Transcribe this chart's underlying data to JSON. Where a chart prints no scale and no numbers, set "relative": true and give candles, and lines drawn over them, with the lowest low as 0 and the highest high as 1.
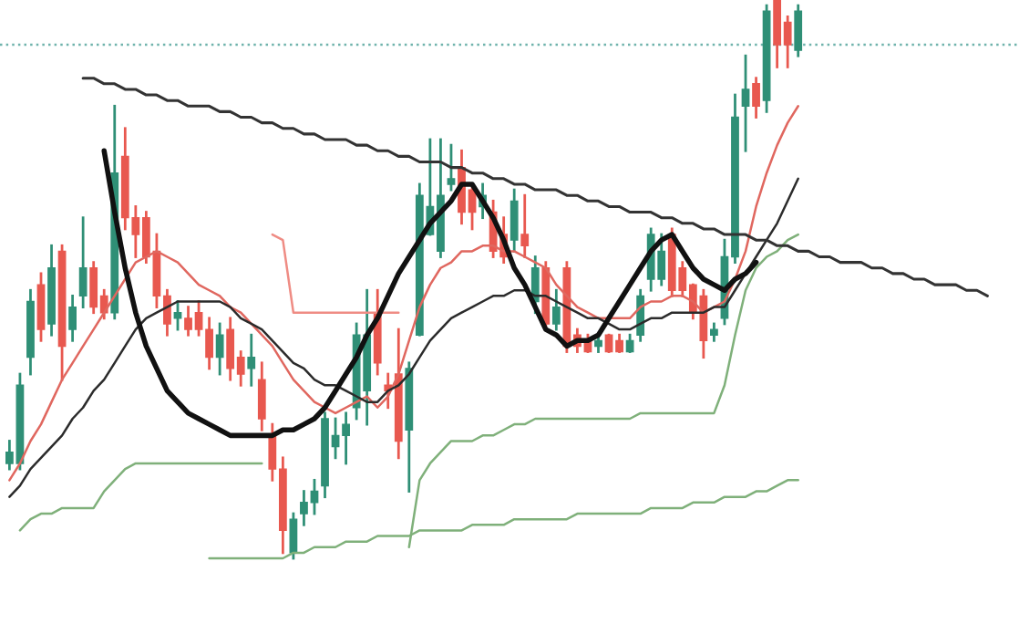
{
  "chart_data": {
    "type": "candlestick",
    "relative": true,
    "categories": [
      null,
      null,
      null,
      null,
      null,
      null,
      null,
      null,
      null,
      null,
      null,
      null,
      null,
      null,
      null,
      null,
      null,
      null,
      null,
      null,
      null,
      null,
      null,
      null,
      null,
      null,
      null,
      null,
      null,
      null,
      null,
      null,
      null,
      null,
      null,
      null,
      null,
      null,
      null,
      null,
      null,
      null,
      null,
      null,
      null,
      null,
      null,
      null,
      null,
      null,
      null,
      null,
      null,
      null,
      null,
      null,
      null,
      null,
      null,
      null,
      null,
      null,
      null,
      null,
      null,
      null,
      null,
      null,
      null,
      null,
      null,
      null,
      null,
      null,
      null,
      null,
      null,
      null,
      null,
      null,
      null,
      null,
      null,
      null,
      null,
      null,
      null,
      null,
      null,
      null,
      null,
      null,
      null,
      null
    ],
    "colors": [
      "#2f8f76",
      "#2f8f76",
      "#2f8f76",
      "#e8584f",
      "#2f8f76",
      "#e8584f",
      "#2f8f76",
      "#2f8f76",
      "#e8584f",
      "#e8584f",
      "#2f8f76",
      "#e8584f",
      "#e8584f",
      "#e8584f",
      "#e8584f",
      "#e8584f",
      "#2f8f76",
      "#e8584f",
      "#e8584f",
      "#e8584f",
      "#2f8f76",
      "#e8584f",
      "#e8584f",
      "#2f8f76",
      "#e8584f",
      "#e8584f",
      "#e8584f",
      "#2f8f76",
      "#2f8f76",
      "#2f8f76",
      "#2f8f76",
      "#2f8f76",
      "#2f8f76",
      "#2f8f76",
      "#2f8f76",
      "#e8584f",
      "#e8584f",
      "#e8584f",
      "#2f8f76",
      "#2f8f76",
      "#2f8f76",
      "#2f8f76",
      "#2f8f76",
      "#e8584f",
      "#e8584f",
      "#2f8f76",
      "#e8584f",
      "#e8584f",
      "#2f8f76",
      "#e8584f",
      "#2f8f76",
      "#e8584f",
      "#2f8f76",
      "#e8584f",
      "#e8584f",
      "#e8584f",
      "#2f8f76",
      "#e8584f",
      "#e8584f",
      "#2f8f76",
      "#2f8f76",
      "#2f8f76",
      "#2f8f76",
      "#e8584f",
      "#e8584f",
      "#e8584f",
      "#e8584f",
      "#2f8f76",
      "#2f8f76",
      "#2f8f76",
      "#2f8f76",
      "#e8584f",
      "#2f8f76",
      "#e8584f",
      "#e8584f",
      "#2f8f76",
      null,
      null,
      null,
      null,
      null,
      null,
      null,
      null,
      null,
      null,
      null,
      null,
      null,
      null,
      null,
      null,
      null,
      null
    ],
    "ohlc": [
      [
        0.17,
        0.21,
        0.16,
        0.19
      ],
      [
        0.17,
        0.33,
        0.16,
        0.31
      ],
      [
        0.36,
        0.48,
        0.33,
        0.46
      ],
      [
        0.49,
        0.51,
        0.39,
        0.41
      ],
      [
        0.42,
        0.56,
        0.4,
        0.52
      ],
      [
        0.55,
        0.56,
        0.32,
        0.38
      ],
      [
        0.41,
        0.47,
        0.39,
        0.45
      ],
      [
        0.47,
        0.61,
        0.45,
        0.52
      ],
      [
        0.52,
        0.53,
        0.44,
        0.45
      ],
      [
        0.47,
        0.48,
        0.43,
        0.44
      ],
      [
        0.44,
        0.81,
        0.43,
        0.69
      ],
      [
        0.72,
        0.77,
        0.59,
        0.61
      ],
      [
        0.61,
        0.63,
        0.54,
        0.58
      ],
      [
        0.61,
        0.62,
        0.53,
        0.54
      ],
      [
        0.55,
        0.58,
        0.45,
        0.47
      ],
      [
        0.47,
        0.48,
        0.4,
        0.42
      ],
      [
        0.43,
        0.46,
        0.41,
        0.44
      ],
      [
        0.43,
        0.45,
        0.4,
        0.41
      ],
      [
        0.44,
        0.46,
        0.4,
        0.41
      ],
      [
        0.41,
        0.43,
        0.34,
        0.36
      ],
      [
        0.36,
        0.42,
        0.33,
        0.4
      ],
      [
        0.41,
        0.43,
        0.32,
        0.34
      ],
      [
        0.36,
        0.37,
        0.31,
        0.33
      ],
      [
        0.34,
        0.4,
        0.31,
        0.36
      ],
      [
        0.32,
        0.35,
        0.23,
        0.25
      ],
      [
        0.22,
        0.24,
        0.14,
        0.16
      ],
      [
        0.16,
        0.18,
        0.01,
        0.05
      ],
      [
        0.01,
        0.08,
        0.0,
        0.07
      ],
      [
        0.08,
        0.12,
        0.06,
        0.1
      ],
      [
        0.1,
        0.14,
        0.08,
        0.12
      ],
      [
        0.13,
        0.26,
        0.11,
        0.25
      ],
      [
        0.2,
        0.25,
        0.18,
        0.22
      ],
      [
        0.22,
        0.26,
        0.17,
        0.24
      ],
      [
        0.27,
        0.42,
        0.25,
        0.4
      ],
      [
        0.3,
        0.48,
        0.24,
        0.4
      ],
      [
        0.44,
        0.48,
        0.33,
        0.35
      ],
      [
        0.31,
        0.33,
        0.27,
        0.3
      ],
      [
        0.33,
        0.41,
        0.18,
        0.21
      ],
      [
        0.23,
        0.35,
        0.12,
        0.34
      ],
      [
        0.4,
        0.67,
        0.4,
        0.65
      ],
      [
        0.58,
        0.75,
        0.58,
        0.63
      ],
      [
        0.55,
        0.75,
        0.54,
        0.65
      ],
      [
        0.67,
        0.74,
        0.66,
        0.68
      ],
      [
        0.7,
        0.73,
        0.6,
        0.62
      ],
      [
        0.66,
        0.67,
        0.59,
        0.62
      ],
      [
        0.63,
        0.67,
        0.61,
        0.65
      ],
      [
        0.62,
        0.64,
        0.54,
        0.55
      ],
      [
        0.58,
        0.61,
        0.53,
        0.54
      ],
      [
        0.57,
        0.66,
        0.55,
        0.64
      ],
      [
        0.58,
        0.65,
        0.54,
        0.56
      ],
      [
        0.46,
        0.54,
        0.44,
        0.52
      ],
      [
        0.52,
        0.53,
        0.41,
        0.42
      ],
      [
        0.42,
        0.48,
        0.41,
        0.45
      ],
      [
        0.52,
        0.53,
        0.37,
        0.38
      ],
      [
        0.4,
        0.41,
        0.37,
        0.38
      ],
      [
        0.39,
        0.4,
        0.37,
        0.37
      ],
      [
        0.38,
        0.4,
        0.37,
        0.39
      ],
      [
        0.4,
        0.4,
        0.37,
        0.37
      ],
      [
        0.39,
        0.4,
        0.37,
        0.37
      ],
      [
        0.37,
        0.4,
        0.37,
        0.39
      ],
      [
        0.4,
        0.48,
        0.39,
        0.47
      ],
      [
        0.5,
        0.59,
        0.48,
        0.58
      ],
      [
        0.5,
        0.58,
        0.49,
        0.55
      ],
      [
        0.58,
        0.59,
        0.47,
        0.48
      ],
      [
        0.52,
        0.53,
        0.47,
        0.48
      ],
      [
        0.49,
        0.49,
        0.43,
        0.44
      ],
      [
        0.47,
        0.48,
        0.36,
        0.39
      ],
      [
        0.4,
        0.42,
        0.39,
        0.41
      ],
      [
        0.43,
        0.57,
        0.42,
        0.54
      ],
      [
        0.54,
        0.83,
        0.53,
        0.79
      ],
      [
        0.81,
        0.9,
        0.73,
        0.84
      ],
      [
        0.85,
        0.86,
        0.79,
        0.81
      ],
      [
        0.82,
        0.99,
        0.8,
        0.98
      ],
      [
        1.0,
        1.0,
        0.88,
        0.92
      ],
      [
        0.96,
        0.97,
        0.88,
        0.92
      ],
      [
        0.91,
        0.99,
        0.9,
        0.98
      ],
      null,
      null,
      null,
      null,
      null,
      null,
      null,
      null,
      null,
      null,
      null,
      null,
      null,
      null,
      null,
      null,
      null,
      null
    ],
    "series": [
      {
        "type": "line",
        "color": "#e0675f",
        "values": [
          0.14,
          0.17,
          0.21,
          0.24,
          0.28,
          0.32,
          0.35,
          0.38,
          0.41,
          0.44,
          0.47,
          0.5,
          0.53,
          0.54,
          0.55,
          0.54,
          0.53,
          0.51,
          0.49,
          0.48,
          0.47,
          0.45,
          0.44,
          0.42,
          0.4,
          0.38,
          0.35,
          0.32,
          0.3,
          0.28,
          0.27,
          0.26,
          0.27,
          0.28,
          0.29,
          0.27,
          0.29,
          0.33,
          0.39,
          0.45,
          0.49,
          0.52,
          0.53,
          0.55,
          0.55,
          0.56,
          0.56,
          0.55,
          0.55,
          0.54,
          0.53,
          0.52,
          0.49,
          0.47,
          0.45,
          0.44,
          0.43,
          0.43,
          0.43,
          0.43,
          0.45,
          0.46,
          0.46,
          0.47,
          0.47,
          0.46,
          0.44,
          0.45,
          0.46,
          0.5,
          0.55,
          0.63,
          0.69,
          0.74,
          0.78,
          0.81,
          null,
          null,
          null,
          null,
          null,
          null,
          null,
          null,
          null,
          null,
          null,
          null,
          null,
          null,
          null,
          null,
          null,
          null
        ]
      },
      {
        "type": "line",
        "color": "#2b2b2b",
        "values": [
          0.11,
          0.13,
          0.16,
          0.18,
          0.2,
          0.22,
          0.25,
          0.27,
          0.3,
          0.32,
          0.35,
          0.38,
          0.41,
          0.43,
          0.44,
          0.45,
          0.46,
          0.46,
          0.46,
          0.46,
          0.46,
          0.45,
          0.43,
          0.42,
          0.41,
          0.39,
          0.37,
          0.35,
          0.34,
          0.32,
          0.31,
          0.31,
          0.3,
          0.29,
          0.28,
          0.28,
          0.3,
          0.31,
          0.33,
          0.36,
          0.39,
          0.41,
          0.43,
          0.44,
          0.45,
          0.46,
          0.47,
          0.47,
          0.48,
          0.48,
          0.47,
          0.47,
          0.46,
          0.45,
          0.44,
          0.43,
          0.43,
          0.42,
          0.41,
          0.41,
          0.42,
          0.43,
          0.43,
          0.44,
          0.44,
          0.44,
          0.44,
          0.45,
          0.45,
          0.48,
          0.51,
          0.54,
          0.57,
          0.6,
          0.64,
          0.68,
          null,
          null,
          null,
          null,
          null,
          null,
          null,
          null,
          null,
          null,
          null,
          null,
          null,
          null,
          null,
          null,
          null,
          null
        ]
      },
      {
        "type": "line",
        "color": "#7fb07a",
        "values": [
          null,
          0.05,
          0.07,
          0.08,
          0.08,
          0.09,
          0.09,
          0.09,
          0.09,
          0.12,
          0.14,
          0.16,
          0.17,
          0.17,
          0.17,
          0.17,
          0.17,
          0.17,
          0.17,
          0.17,
          0.17,
          0.17,
          0.17,
          0.17,
          0.17,
          null,
          null,
          null,
          null,
          null,
          null,
          null,
          null,
          null,
          null,
          null,
          null,
          null,
          null,
          null,
          null,
          null,
          null,
          null,
          null,
          null,
          null,
          null,
          null,
          null,
          null,
          null,
          null,
          null,
          null,
          null,
          null,
          null,
          null,
          null,
          null,
          null,
          null,
          null,
          null,
          null,
          null,
          null,
          null,
          null,
          null,
          null,
          null,
          null,
          null,
          null,
          null,
          null,
          null,
          null,
          null,
          null,
          null,
          null,
          null,
          null,
          null,
          null,
          null,
          null,
          null,
          null,
          null,
          null
        ]
      },
      {
        "type": "line",
        "color": "#ef8c84",
        "values": [
          null,
          null,
          null,
          null,
          null,
          null,
          null,
          null,
          null,
          null,
          null,
          null,
          null,
          null,
          null,
          null,
          null,
          null,
          null,
          null,
          null,
          null,
          null,
          null,
          null,
          0.58,
          0.57,
          0.44,
          0.44,
          0.44,
          0.44,
          0.44,
          0.44,
          0.44,
          0.44,
          0.44,
          0.44,
          0.44,
          null,
          null,
          null,
          null,
          null,
          null,
          null,
          null,
          null,
          null,
          null,
          null,
          null,
          null,
          null,
          null,
          null,
          null,
          null,
          null,
          null,
          null,
          null,
          null,
          null,
          null,
          null,
          null,
          null,
          null,
          null,
          null,
          null,
          null,
          null,
          null,
          null,
          null,
          null,
          null,
          null,
          null,
          null,
          null,
          null,
          null,
          null,
          null,
          null,
          null,
          null,
          null,
          null,
          null,
          null,
          null
        ]
      },
      {
        "type": "line",
        "color": "#7fb07a",
        "values": [
          null,
          null,
          null,
          null,
          null,
          null,
          null,
          null,
          null,
          null,
          null,
          null,
          null,
          null,
          null,
          null,
          null,
          null,
          null,
          null,
          null,
          null,
          null,
          null,
          null,
          null,
          null,
          null,
          null,
          null,
          null,
          null,
          null,
          null,
          null,
          null,
          null,
          null,
          0.02,
          0.14,
          0.17,
          0.19,
          0.21,
          0.21,
          0.21,
          0.22,
          0.22,
          0.23,
          0.24,
          0.24,
          0.25,
          0.25,
          0.25,
          0.25,
          0.25,
          0.25,
          0.25,
          0.25,
          0.25,
          0.25,
          0.26,
          0.26,
          0.26,
          0.26,
          0.26,
          0.26,
          0.26,
          0.26,
          0.31,
          0.4,
          0.48,
          0.52,
          0.54,
          0.55,
          0.57,
          0.58,
          null,
          null,
          null,
          null,
          null,
          null,
          null,
          null,
          null,
          null,
          null,
          null,
          null,
          null,
          null,
          null,
          null,
          null
        ]
      },
      {
        "type": "line",
        "color": "#7fb07a",
        "values": [
          null,
          null,
          null,
          null,
          null,
          null,
          null,
          null,
          null,
          null,
          null,
          null,
          null,
          null,
          null,
          null,
          null,
          null,
          null,
          0.0,
          0.0,
          0.0,
          0.0,
          0.0,
          0.0,
          0.0,
          0.0,
          0.01,
          0.01,
          0.02,
          0.02,
          0.02,
          0.03,
          0.03,
          0.03,
          0.04,
          0.04,
          0.04,
          0.04,
          0.05,
          0.05,
          0.05,
          0.05,
          0.05,
          0.06,
          0.06,
          0.06,
          0.06,
          0.07,
          0.07,
          0.07,
          0.07,
          0.07,
          0.07,
          0.08,
          0.08,
          0.08,
          0.08,
          0.08,
          0.08,
          0.08,
          0.09,
          0.09,
          0.09,
          0.09,
          0.1,
          0.1,
          0.1,
          0.11,
          0.11,
          0.11,
          0.12,
          0.12,
          0.13,
          0.14,
          0.14,
          null,
          null,
          null,
          null,
          null,
          null,
          null,
          null,
          null,
          null,
          null,
          null,
          null,
          null,
          null,
          null,
          null,
          null
        ]
      },
      {
        "type": "line",
        "color": "#111111",
        "values": [
          null,
          null,
          null,
          null,
          null,
          null,
          null,
          null,
          null,
          0.73,
          0.62,
          0.52,
          0.44,
          0.38,
          0.34,
          0.3,
          0.28,
          0.26,
          0.25,
          0.24,
          0.23,
          0.22,
          0.22,
          0.22,
          0.22,
          0.22,
          0.23,
          0.23,
          0.24,
          0.25,
          0.27,
          0.3,
          0.33,
          0.36,
          0.4,
          0.43,
          0.47,
          0.51,
          0.54,
          0.57,
          0.6,
          0.62,
          0.64,
          0.67,
          0.67,
          0.64,
          0.61,
          0.57,
          0.52,
          0.49,
          0.45,
          0.41,
          0.4,
          0.38,
          0.39,
          0.39,
          0.4,
          0.43,
          0.46,
          0.49,
          0.52,
          0.55,
          0.57,
          0.58,
          0.55,
          0.52,
          0.5,
          0.49,
          0.48,
          0.5,
          0.51,
          0.53,
          null,
          null,
          null,
          null,
          null,
          null,
          null,
          null,
          null,
          null,
          null,
          null,
          null,
          null,
          null,
          null,
          null,
          null,
          null,
          null,
          null,
          null
        ]
      },
      {
        "type": "line",
        "color": "#333333",
        "values": [
          null,
          null,
          null,
          null,
          null,
          null,
          null,
          0.86,
          0.86,
          0.85,
          0.85,
          0.84,
          0.84,
          0.83,
          0.83,
          0.82,
          0.82,
          0.81,
          0.81,
          0.81,
          0.8,
          0.8,
          0.79,
          0.79,
          0.78,
          0.78,
          0.77,
          0.77,
          0.76,
          0.76,
          0.75,
          0.75,
          0.75,
          0.74,
          0.74,
          0.73,
          0.73,
          0.72,
          0.72,
          0.71,
          0.71,
          0.71,
          0.7,
          0.7,
          0.69,
          0.69,
          0.68,
          0.68,
          0.67,
          0.67,
          0.66,
          0.66,
          0.66,
          0.65,
          0.65,
          0.64,
          0.64,
          0.63,
          0.63,
          0.62,
          0.62,
          0.62,
          0.61,
          0.61,
          0.6,
          0.6,
          0.59,
          0.59,
          0.58,
          0.58,
          0.58,
          0.57,
          0.57,
          0.56,
          0.56,
          0.55,
          0.55,
          0.54,
          0.54,
          0.53,
          0.53,
          0.53,
          0.52,
          0.52,
          0.51,
          0.51,
          0.5,
          0.5,
          0.49,
          0.49,
          0.49,
          0.48,
          0.48,
          0.47
        ]
      }
    ],
    "ref_lines": [
      {
        "axis": "y",
        "value": 0.92,
        "color": "#6fb3ac",
        "line_style": "dotted"
      }
    ]
  }
}
